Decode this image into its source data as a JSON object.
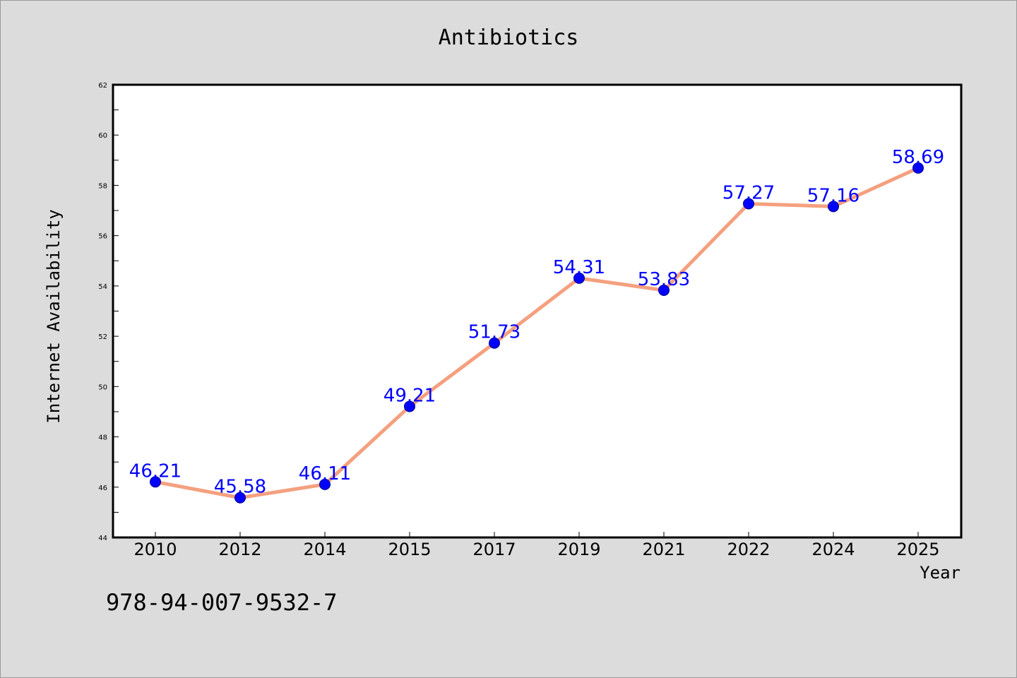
{
  "chart_data": {
    "type": "line",
    "title": "Antibiotics",
    "xlabel": "Year",
    "ylabel": "Internet Availability",
    "categories": [
      "2010",
      "2012",
      "2014",
      "2015",
      "2017",
      "2019",
      "2021",
      "2022",
      "2024",
      "2025"
    ],
    "series": [
      {
        "values": [
          46.21,
          45.58,
          46.11,
          49.21,
          51.73,
          54.31,
          53.83,
          57.27,
          57.16,
          58.69
        ],
        "data_labels": [
          "46.21",
          "45.58",
          "46.11",
          "49.21",
          "51.73",
          "54.31",
          "53.83",
          "57.27",
          "57.16",
          "58.69"
        ]
      }
    ],
    "ylim": [
      44,
      62
    ],
    "yticks": [
      "44",
      "46",
      "48",
      "50",
      "52",
      "54",
      "56",
      "58",
      "60",
      "62"
    ],
    "grid": false,
    "colors": {
      "line": "#f4a07f",
      "marker": "#0000ff",
      "label": "#0000ff",
      "background": "#dcdcdc",
      "plot_bg": "#ffffff"
    }
  },
  "annotation": {
    "isbn": "978-94-007-9532-7"
  }
}
